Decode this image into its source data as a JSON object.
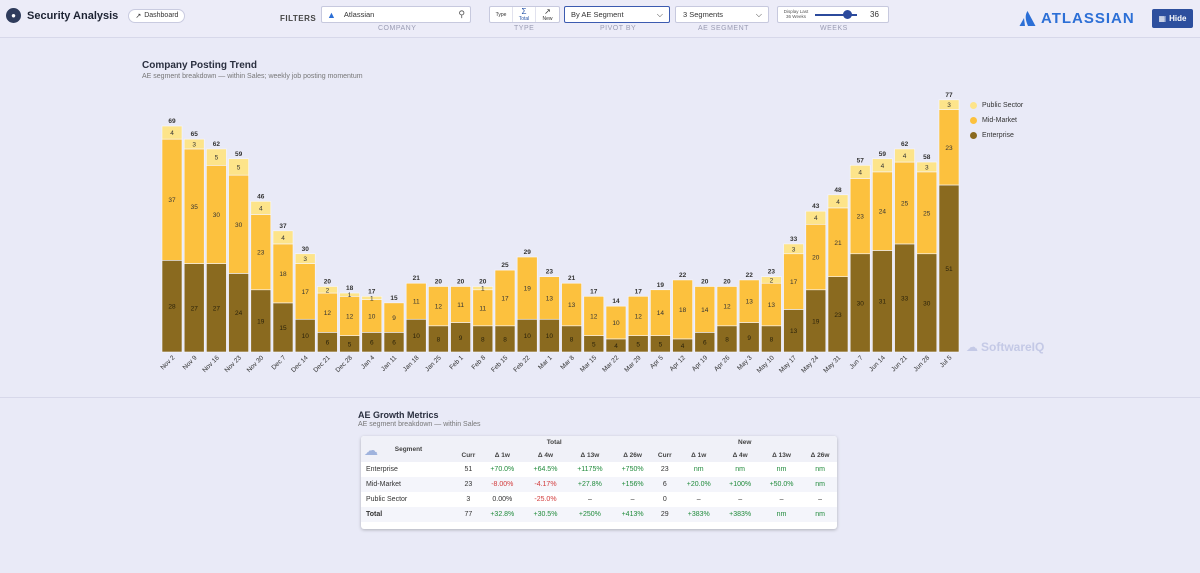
{
  "header": {
    "app_title": "Security Analysis",
    "dashboard_label": "Dashboard",
    "filters_label": "FILTERS",
    "company_value": "Atlassian",
    "company_label": "COMPANY",
    "type_label": "TYPE",
    "type_options": [
      "Type",
      "Total",
      "New"
    ],
    "pivot_value": "By AE Segment",
    "pivot_label": "PIVOT BY",
    "segment_value": "3 Segments",
    "segment_label": "AE SEGMENT",
    "weeks_caption": "Display Last 36 Weeks",
    "weeks_value": "36",
    "weeks_label": "WEEKS",
    "logo_text": "ATLASSIAN",
    "hide_label": "Hide"
  },
  "chart_title": "Company Posting Trend",
  "chart_subtitle": "AE segment breakdown — within Sales; weekly job posting momentum",
  "watermark": "SoftwareIQ",
  "colors": {
    "enterprise": "#8a6a1f",
    "mid_market": "#fcc13e",
    "public_sector": "#fde48a"
  },
  "chart_data": {
    "type": "bar",
    "stacked": true,
    "categories": [
      "Nov 2",
      "Nov 9",
      "Nov 16",
      "Nov 23",
      "Nov 30",
      "Dec 7",
      "Dec 14",
      "Dec 21",
      "Dec 28",
      "Jan 4",
      "Jan 11",
      "Jan 18",
      "Jan 25",
      "Feb 1",
      "Feb 8",
      "Feb 15",
      "Feb 22",
      "Mar 1",
      "Mar 8",
      "Mar 15",
      "Mar 22",
      "Mar 29",
      "Apr 5",
      "Apr 12",
      "Apr 19",
      "Apr 26",
      "May 3",
      "May 10",
      "May 17",
      "May 24",
      "May 31",
      "Jun 7",
      "Jun 14",
      "Jun 21",
      "Jun 28",
      "Jul 5"
    ],
    "series": [
      {
        "name": "Enterprise",
        "values": [
          28,
          27,
          27,
          24,
          19,
          15,
          10,
          6,
          5,
          6,
          6,
          10,
          8,
          9,
          8,
          8,
          10,
          10,
          8,
          5,
          4,
          5,
          5,
          4,
          6,
          8,
          9,
          8,
          13,
          19,
          23,
          30,
          31,
          33,
          30,
          51
        ]
      },
      {
        "name": "Mid-Market",
        "values": [
          37,
          35,
          30,
          30,
          23,
          18,
          17,
          12,
          12,
          10,
          9,
          11,
          12,
          11,
          11,
          17,
          19,
          13,
          13,
          12,
          10,
          12,
          14,
          18,
          14,
          12,
          13,
          13,
          17,
          20,
          21,
          23,
          24,
          25,
          25,
          23
        ]
      },
      {
        "name": "Public Sector",
        "values": [
          4,
          3,
          5,
          5,
          4,
          4,
          3,
          2,
          1,
          1,
          0,
          0,
          0,
          0,
          1,
          0,
          0,
          0,
          0,
          0,
          0,
          0,
          0,
          0,
          0,
          0,
          0,
          2,
          3,
          4,
          4,
          4,
          4,
          4,
          3,
          3
        ]
      }
    ],
    "totals": [
      69,
      65,
      62,
      59,
      46,
      37,
      30,
      20,
      18,
      17,
      15,
      21,
      20,
      20,
      20,
      25,
      29,
      23,
      21,
      17,
      14,
      17,
      19,
      22,
      20,
      20,
      22,
      23,
      33,
      43,
      48,
      57,
      59,
      62,
      58,
      77
    ],
    "ylim": [
      0,
      80
    ],
    "legend_position": "right"
  },
  "table": {
    "title": "AE Growth Metrics",
    "subtitle": "AE segment breakdown — within Sales",
    "group_headers": [
      "Total",
      "New"
    ],
    "segment_header": "Segment",
    "columns": [
      "Curr",
      "Δ 1w",
      "Δ 4w",
      "Δ 13w",
      "Δ 26w",
      "Curr",
      "Δ 1w",
      "Δ 4w",
      "Δ 13w",
      "Δ 26w"
    ],
    "rows": [
      {
        "segment": "Enterprise",
        "cells": [
          "51",
          "+70.0%",
          "+64.5%",
          "+1175%",
          "+750%",
          "23",
          "nm",
          "nm",
          "nm",
          "nm"
        ]
      },
      {
        "segment": "Mid-Market",
        "cells": [
          "23",
          "-8.00%",
          "-4.17%",
          "+27.8%",
          "+156%",
          "6",
          "+20.0%",
          "+100%",
          "+50.0%",
          "nm"
        ]
      },
      {
        "segment": "Public Sector",
        "cells": [
          "3",
          "0.00%",
          "-25.0%",
          "–",
          "–",
          "0",
          "–",
          "–",
          "–",
          "–"
        ]
      },
      {
        "segment": "Total",
        "cells": [
          "77",
          "+32.8%",
          "+30.5%",
          "+250%",
          "+413%",
          "29",
          "+383%",
          "+383%",
          "nm",
          "nm"
        ]
      }
    ]
  }
}
